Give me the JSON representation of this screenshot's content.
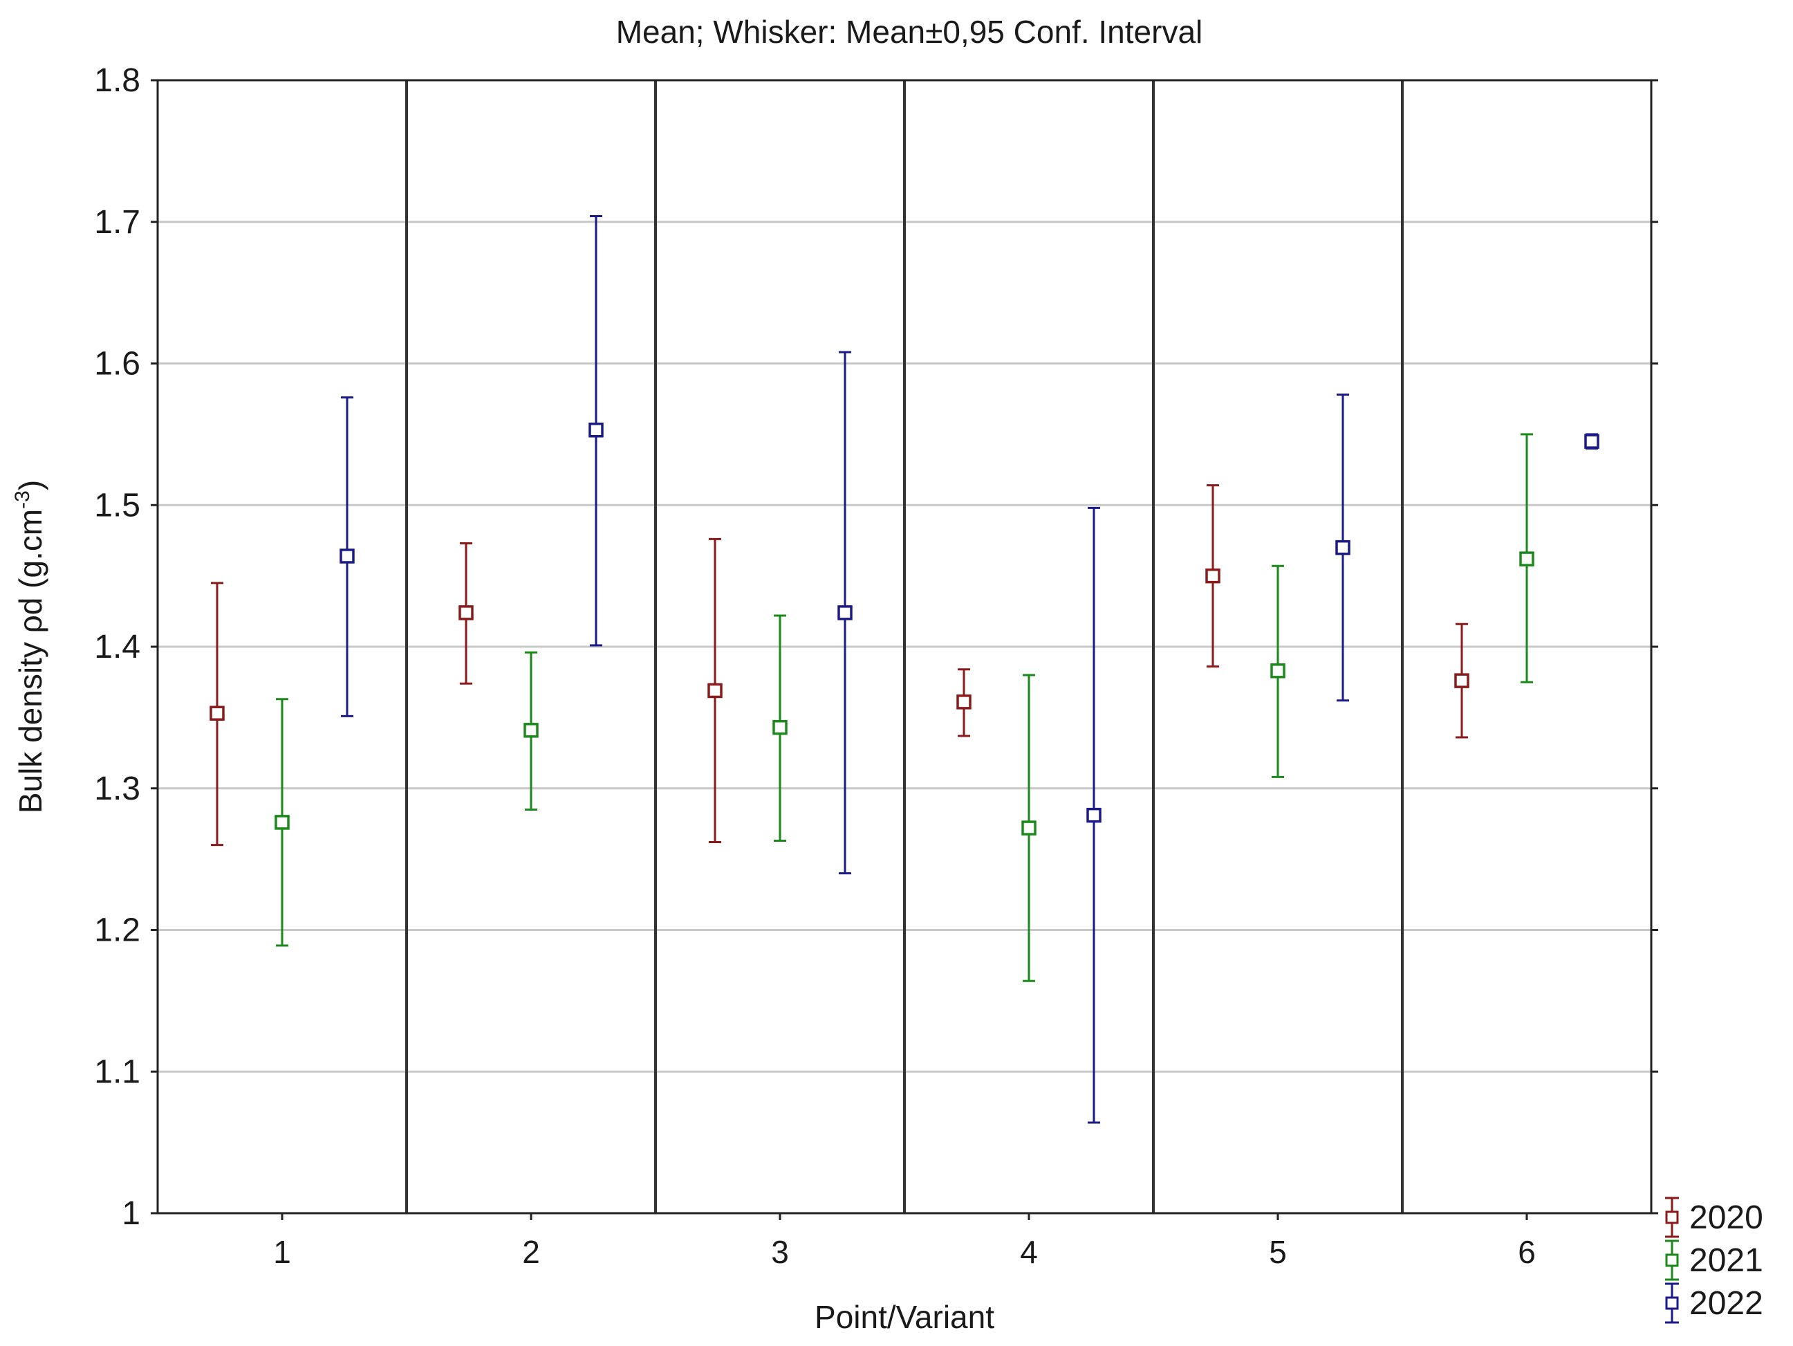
{
  "chart_data": {
    "type": "scatter",
    "title": "Mean; Whisker: Mean±0,95 Conf. Interval",
    "xlabel": "Point/Variant",
    "ylabel_main": "Bulk density ρd (g.cm",
    "ylabel_sup": "-3",
    "ylabel_tail": ")",
    "categories": [
      "1",
      "2",
      "3",
      "4",
      "5",
      "6"
    ],
    "ylim": [
      1.0,
      1.8
    ],
    "yticks": [
      1.0,
      1.1,
      1.2,
      1.3,
      1.4,
      1.5,
      1.6,
      1.7,
      1.8
    ],
    "ytick_labels": [
      "1",
      "1.1",
      "1.2",
      "1.3",
      "1.4",
      "1.5",
      "1.6",
      "1.7",
      "1.8"
    ],
    "grid": "horizontal",
    "legend_position": "bottom-right outside",
    "series": [
      {
        "name": "2020",
        "color": "#8b1a1a",
        "mean": [
          1.353,
          1.424,
          1.369,
          1.361,
          1.45,
          1.376
        ],
        "lower": [
          1.26,
          1.374,
          1.262,
          1.337,
          1.386,
          1.336
        ],
        "upper": [
          1.445,
          1.473,
          1.476,
          1.384,
          1.514,
          1.416
        ]
      },
      {
        "name": "2021",
        "color": "#1b8a1b",
        "mean": [
          1.276,
          1.341,
          1.343,
          1.272,
          1.383,
          1.462
        ],
        "lower": [
          1.189,
          1.285,
          1.263,
          1.164,
          1.308,
          1.375
        ],
        "upper": [
          1.363,
          1.396,
          1.422,
          1.38,
          1.457,
          1.55
        ]
      },
      {
        "name": "2022",
        "color": "#1a1a8b",
        "mean": [
          1.464,
          1.553,
          1.424,
          1.281,
          1.47,
          1.545
        ],
        "lower": [
          1.351,
          1.401,
          1.24,
          1.064,
          1.362,
          1.54
        ],
        "upper": [
          1.576,
          1.704,
          1.608,
          1.498,
          1.578,
          1.55
        ]
      }
    ]
  }
}
